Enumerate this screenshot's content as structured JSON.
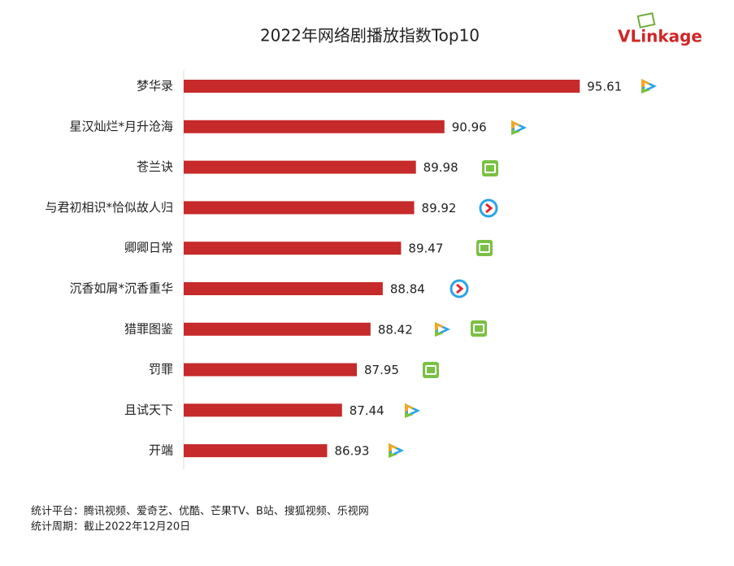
{
  "chart_data": {
    "type": "hbar",
    "title": "2022年网络剧播放指数Top10",
    "logo": "VLinkage",
    "categories": [
      "梦华录",
      "星汉灿烂*月升沧海",
      "苍兰诀",
      "与君初相识*恰似故人归",
      "卿卿日常",
      "沉香如屑*沉香重华",
      "猎罪图鉴",
      "罚罪",
      "且试天下",
      "开端"
    ],
    "values": [
      95.61,
      90.96,
      89.98,
      89.92,
      89.47,
      88.84,
      88.42,
      87.95,
      87.44,
      86.93
    ],
    "color": "#c62a2a",
    "xlim": [
      82,
      97
    ],
    "notes": [
      "统计平台：腾讯视频、爱奇艺、优酷、芒果TV、B站、搜狐视频、乐视网",
      "统计周期：截止2022年12月20日"
    ]
  }
}
